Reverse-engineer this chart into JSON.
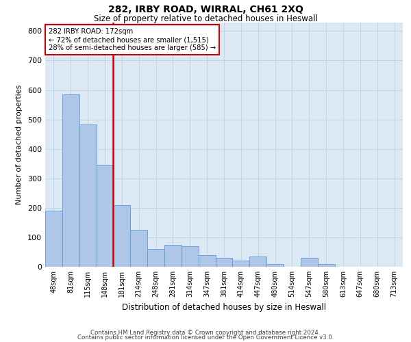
{
  "title": "282, IRBY ROAD, WIRRAL, CH61 2XQ",
  "subtitle": "Size of property relative to detached houses in Heswall",
  "xlabel": "Distribution of detached houses by size in Heswall",
  "ylabel": "Number of detached properties",
  "footnote1": "Contains HM Land Registry data © Crown copyright and database right 2024.",
  "footnote2": "Contains public sector information licensed under the Open Government Licence v3.0.",
  "bar_labels": [
    "48sqm",
    "81sqm",
    "115sqm",
    "148sqm",
    "181sqm",
    "214sqm",
    "248sqm",
    "281sqm",
    "314sqm",
    "347sqm",
    "381sqm",
    "414sqm",
    "447sqm",
    "480sqm",
    "514sqm",
    "547sqm",
    "580sqm",
    "613sqm",
    "647sqm",
    "680sqm",
    "713sqm"
  ],
  "bar_values": [
    190,
    585,
    482,
    347,
    210,
    125,
    60,
    75,
    70,
    40,
    30,
    20,
    35,
    10,
    0,
    30,
    10,
    0,
    0,
    0,
    0
  ],
  "bar_color": "#aec6e8",
  "bar_edgecolor": "#5b9bd5",
  "grid_color": "#c0d4e8",
  "bg_color": "#dce9f5",
  "vline_color": "#cc0000",
  "vline_pos": 3.5,
  "annotation_text": "282 IRBY ROAD: 172sqm\n← 72% of detached houses are smaller (1,515)\n28% of semi-detached houses are larger (585) →",
  "annotation_box_color": "#ffffff",
  "annotation_box_edgecolor": "#cc0000",
  "ylim": [
    0,
    830
  ],
  "yticks": [
    0,
    100,
    200,
    300,
    400,
    500,
    600,
    700,
    800
  ]
}
